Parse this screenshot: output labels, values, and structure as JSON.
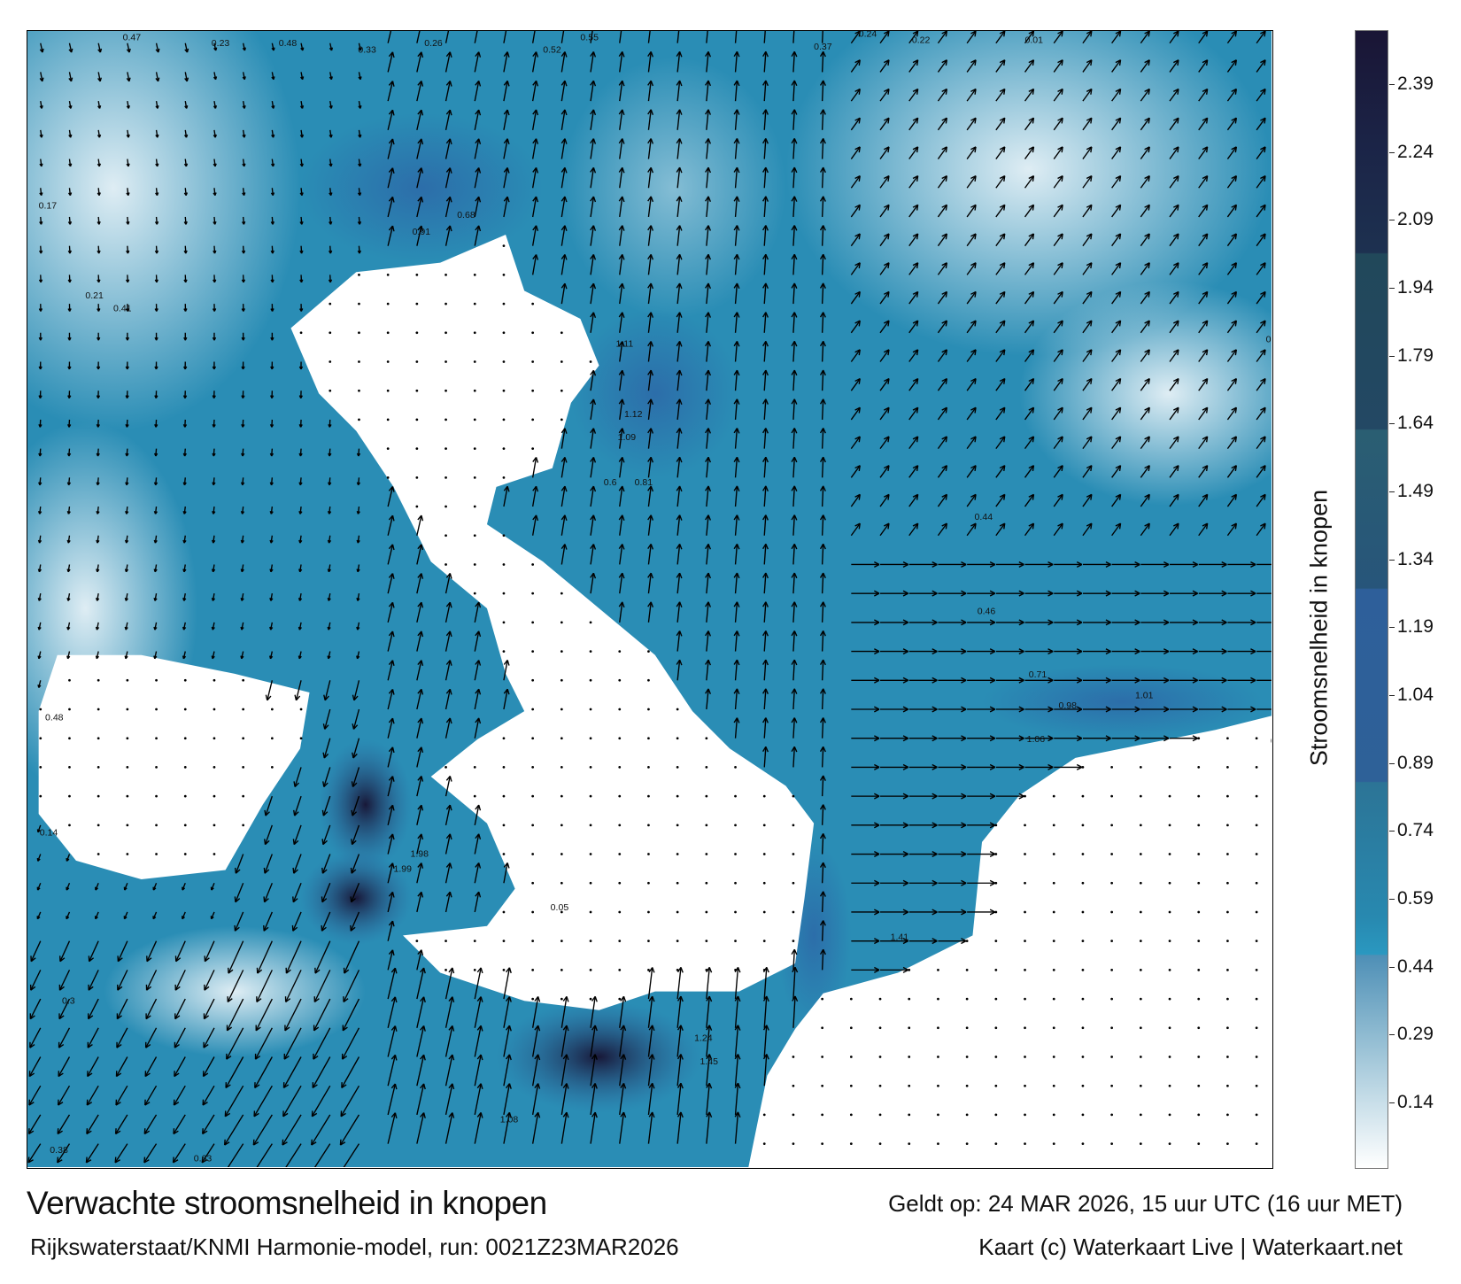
{
  "title": "Verwachte stroomsnelheid in knopen",
  "subtitle": "Rijkswaterstaat/KNMI Harmonie-model, run: 0021Z23MAR2026",
  "valid_time": "Geldt op: 24 MAR 2026, 15 uur UTC (16 uur MET)",
  "credit": "Kaart (c) Waterkaart Live | Waterkaart.net",
  "colorbar": {
    "title": "Stroomsnelheid in knopen",
    "ticks": [
      "2.39",
      "2.24",
      "2.09",
      "1.94",
      "1.79",
      "1.64",
      "1.49",
      "1.34",
      "1.19",
      "1.04",
      "0.89",
      "0.74",
      "0.59",
      "0.44",
      "0.29",
      "0.14"
    ],
    "colors": {
      "max": "#1a1535",
      "high": "#234864",
      "mid": "#2e5f9a",
      "low": "#2a98c0",
      "min": "#ffffff"
    }
  },
  "map": {
    "colors": {
      "land": "#ffffff",
      "sea": "#2a8db5",
      "arrow": "#000000"
    },
    "speed_labels": [
      "0.47",
      "0.23",
      "0.48",
      "0.33",
      "0.26",
      "0.55",
      "0.24",
      "0.22",
      "0.01",
      "0.17",
      "0.21",
      "0.41",
      "0.52",
      "0.37",
      "0.91",
      "0.68",
      "1.11",
      "1.12",
      "1.09",
      "0.6",
      "0.81",
      "0.44",
      "0.46",
      "0.71",
      "1.01",
      "0.98",
      "1.06",
      "1.98",
      "1.99",
      "1.24",
      "1.45",
      "1.08",
      "0.63",
      "0.38",
      "0.48",
      "0.14",
      "0.3",
      "0.05",
      "1.41",
      "0.29",
      "0.06"
    ]
  }
}
